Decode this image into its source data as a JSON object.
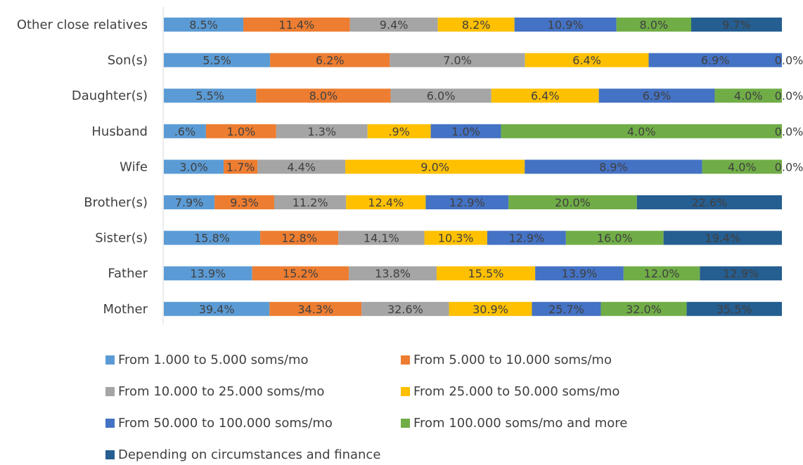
{
  "chart_data": {
    "type": "bar",
    "orientation": "horizontal",
    "stacked": "100%",
    "title": "",
    "categories": [
      "Other close relatives",
      "Son(s)",
      "Daughter(s)",
      "Husband",
      "Wife",
      "Brother(s)",
      "Sister(s)",
      "Father",
      "Mother"
    ],
    "series": [
      {
        "name": "From 1.000 to 5.000 soms/mo",
        "color": "#5B9BD5",
        "values": [
          8.5,
          5.5,
          5.5,
          0.6,
          3.0,
          7.9,
          15.8,
          13.9,
          39.4
        ],
        "labels": [
          "8.5%",
          "5.5%",
          "5.5%",
          ".6%",
          "3.0%",
          "7.9%",
          "15.8%",
          "13.9%",
          "39.4%"
        ]
      },
      {
        "name": "From 5.000 to 10.000 soms/mo",
        "color": "#ED7D31",
        "values": [
          11.4,
          6.2,
          8.0,
          1.0,
          1.7,
          9.3,
          12.8,
          15.2,
          34.3
        ],
        "labels": [
          "11.4%",
          "6.2%",
          "8.0%",
          "1.0%",
          "1.7%",
          "9.3%",
          "12.8%",
          "15.2%",
          "34.3%"
        ]
      },
      {
        "name": "From 10.000 to 25.000 soms/mo",
        "color": "#A5A5A5",
        "values": [
          9.4,
          7.0,
          6.0,
          1.3,
          4.4,
          11.2,
          14.1,
          13.8,
          32.6
        ],
        "labels": [
          "9.4%",
          "7.0%",
          "6.0%",
          "1.3%",
          "4.4%",
          "11.2%",
          "14.1%",
          "13.8%",
          "32.6%"
        ]
      },
      {
        "name": "From 25.000 to  50.000 soms/mo",
        "color": "#FFC000",
        "values": [
          8.2,
          6.4,
          6.4,
          0.9,
          9.0,
          12.4,
          10.3,
          15.5,
          30.9
        ],
        "labels": [
          "8.2%",
          "6.4%",
          "6.4%",
          ".9%",
          "9.0%",
          "12.4%",
          "10.3%",
          "15.5%",
          "30.9%"
        ]
      },
      {
        "name": "From 50.000 to 100.000 soms/mo",
        "color": "#4472C4",
        "values": [
          10.9,
          6.9,
          6.9,
          1.0,
          8.9,
          12.9,
          12.9,
          13.9,
          25.7
        ],
        "labels": [
          "10.9%",
          "6.9%",
          "6.9%",
          "1.0%",
          "8.9%",
          "12.9%",
          "12.9%",
          "13.9%",
          "25.7%"
        ]
      },
      {
        "name": "From 100.000 soms/mo and more",
        "color": "#70AD47",
        "values": [
          8.0,
          0.0,
          4.0,
          4.0,
          4.0,
          20.0,
          16.0,
          12.0,
          32.0
        ],
        "labels": [
          "8.0%",
          "",
          "4.0%",
          "4.0%",
          "4.0%",
          "20.0%",
          "16.0%",
          "12.0%",
          "32.0%"
        ]
      },
      {
        "name": "Depending on circumstances and finance",
        "color": "#255E91",
        "values": [
          9.7,
          0.0,
          0.0,
          0.0,
          0.0,
          22.6,
          19.4,
          12.9,
          35.5
        ],
        "labels": [
          "9.7%",
          "0.0%",
          "0.0%",
          "0.0%",
          "0.0%",
          "22.6%",
          "19.4%",
          "12.9%",
          "35.5%"
        ]
      }
    ],
    "xlim": [
      0,
      100
    ],
    "grid": false,
    "legend_position": "bottom"
  }
}
